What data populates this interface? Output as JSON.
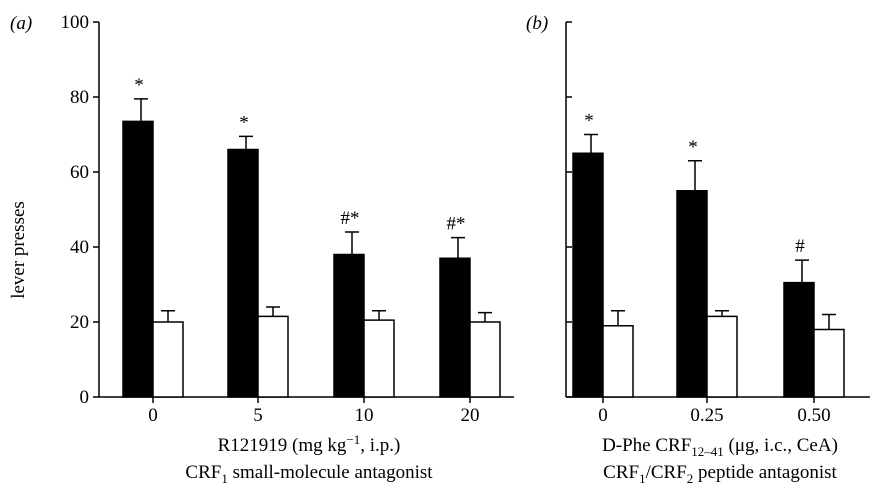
{
  "chart_data": [
    {
      "type": "bar",
      "panel_label": "(a)",
      "ylabel": "lever presses",
      "ylim": [
        0,
        100
      ],
      "yticks": [
        "0",
        "20",
        "40",
        "60",
        "80",
        "100"
      ],
      "categories": [
        "0",
        "5",
        "10",
        "20"
      ],
      "xlabel_line1": {
        "pre": "R121919 (mg kg",
        "sup": "−1",
        "post": ", i.p.)"
      },
      "xlabel_line2": {
        "pre": "CRF",
        "sub": "1",
        "post": " small-molecule antagonist"
      },
      "series": [
        {
          "color": "#000000",
          "values": [
            73.5,
            66,
            38,
            37
          ],
          "errors": [
            6,
            3.5,
            6,
            5.5
          ]
        },
        {
          "color": "#ffffff",
          "values": [
            20,
            21.5,
            20.5,
            20
          ],
          "errors": [
            3,
            2.5,
            2.5,
            2.5
          ]
        }
      ],
      "annotations": [
        "*",
        "*",
        "#*",
        "#*"
      ]
    },
    {
      "type": "bar",
      "panel_label": "(b)",
      "ylim": [
        0,
        100
      ],
      "categories": [
        "0",
        "0.25",
        "0.50"
      ],
      "xlabel_line1": {
        "pre": "D-Phe CRF",
        "sub": "12–41",
        "post": " (μg, i.c., CeA)"
      },
      "xlabel_line2": {
        "a": "CRF",
        "a_sub": "1",
        "mid": "/CRF",
        "b_sub": "2",
        "post": " peptide antagonist"
      },
      "series": [
        {
          "color": "#000000",
          "values": [
            65,
            55,
            30.5
          ],
          "errors": [
            5,
            8,
            6
          ]
        },
        {
          "color": "#ffffff",
          "values": [
            19,
            21.5,
            18
          ],
          "errors": [
            4,
            1.5,
            4
          ]
        }
      ],
      "annotations": [
        "*",
        "*",
        "#"
      ]
    }
  ]
}
